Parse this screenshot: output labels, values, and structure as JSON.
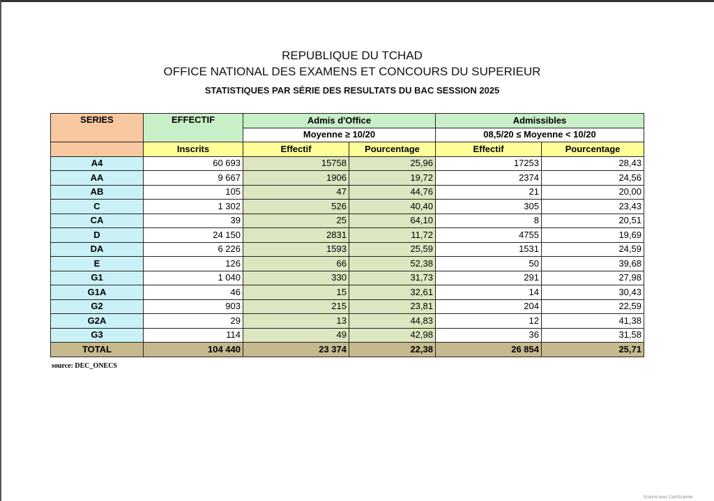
{
  "header": {
    "line1": "REPUBLIQUE DU TCHAD",
    "line2": "OFFICE NATIONAL  DES EXAMENS ET CONCOURS DU SUPERIEUR",
    "line3": "STATISTIQUES PAR SÉRIE DES RESULTATS DU BAC SESSION 2025"
  },
  "table": {
    "h_series": "SERIES",
    "h_effectif": "EFFECTIF",
    "h_admis": "Admis d'Office",
    "h_admissibles": "Admissibles",
    "h_admis_cond": "Moyenne ≥ 10/20",
    "h_admissibles_cond": "08,5/20 ≤ Moyenne < 10/20",
    "h_inscrits": "Inscrits",
    "h_eff1": "Effectif",
    "h_pct1": "Pourcentage",
    "h_eff2": "Effectif",
    "h_pct2": "Pourcentage",
    "rows": [
      [
        "A4",
        "60 693",
        "15758",
        "25,96",
        "17253",
        "28,43"
      ],
      [
        "AA",
        "9 667",
        "1906",
        "19,72",
        "2374",
        "24,56"
      ],
      [
        "AB",
        "105",
        "47",
        "44,76",
        "21",
        "20,00"
      ],
      [
        "C",
        "1 302",
        "526",
        "40,40",
        "305",
        "23,43"
      ],
      [
        "CA",
        "39",
        "25",
        "64,10",
        "8",
        "20,51"
      ],
      [
        "D",
        "24 150",
        "2831",
        "11,72",
        "4755",
        "19,69"
      ],
      [
        "DA",
        "6 226",
        "1593",
        "25,59",
        "1531",
        "24,59"
      ],
      [
        "E",
        "126",
        "66",
        "52,38",
        "50",
        "39,68"
      ],
      [
        "G1",
        "1 040",
        "330",
        "31,73",
        "291",
        "27,98"
      ],
      [
        "G1A",
        "46",
        "15",
        "32,61",
        "14",
        "30,43"
      ],
      [
        "G2",
        "903",
        "215",
        "23,81",
        "204",
        "22,59"
      ],
      [
        "G2A",
        "29",
        "13",
        "44,83",
        "12",
        "41,38"
      ],
      [
        "G3",
        "114",
        "49",
        "42,98",
        "36",
        "31,58"
      ]
    ],
    "total": [
      "TOTAL",
      "104 440",
      "23 374",
      "22,38",
      "26 854",
      "25,71"
    ]
  },
  "source": "source: DEC_ONECS",
  "watermark": "Scanné avec CamScanner"
}
